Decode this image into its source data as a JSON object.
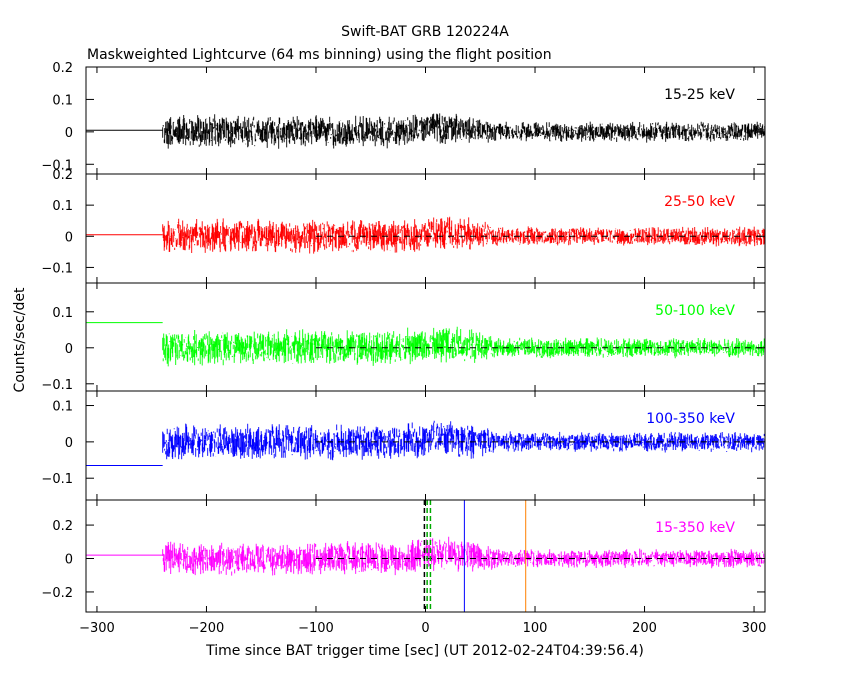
{
  "chart_data": {
    "type": "line",
    "title": "Swift-BAT GRB 120224A",
    "subtitle": "Maskweighted Lightcurve (64 ms binning) using the flight position",
    "xlabel": "Time since BAT trigger time [sec] (UT 2012-02-24T04:39:56.4)",
    "ylabel": "Counts/sec/det",
    "xlim": [
      -310,
      310
    ],
    "x_ticks": [
      -300,
      -200,
      -100,
      0,
      100,
      200,
      300
    ],
    "data_start": -240,
    "grid": false,
    "panels": [
      {
        "band": "15-25 keV",
        "color": "#000000",
        "ylim": [
          -0.13,
          0.2
        ],
        "y_ticks": [
          -0.1,
          0,
          0.1,
          0.2
        ],
        "y_tick_labels": [
          "−0.1",
          "0",
          "0.1",
          "0.2"
        ],
        "pre_level": 0.005,
        "noise_early": 0.045,
        "noise_late": 0.028,
        "bump": 0.015,
        "zero_dashed": false
      },
      {
        "band": "25-50 keV",
        "color": "#ff0000",
        "ylim": [
          -0.15,
          0.2
        ],
        "y_ticks": [
          -0.1,
          0,
          0.1,
          0.2
        ],
        "y_tick_labels": [
          "−0.1",
          "0",
          "0.1",
          "0.2"
        ],
        "pre_level": 0.005,
        "noise_early": 0.05,
        "noise_late": 0.028,
        "bump": 0.012,
        "zero_dashed": true
      },
      {
        "band": "50-100 keV",
        "color": "#00ff00",
        "ylim": [
          -0.12,
          0.18
        ],
        "y_ticks": [
          -0.1,
          0,
          0.1
        ],
        "y_tick_labels": [
          "−0.1",
          "0",
          "0.1"
        ],
        "pre_level": 0.07,
        "noise_early": 0.045,
        "noise_late": 0.025,
        "bump": 0.008,
        "zero_dashed": true
      },
      {
        "band": "100-350 keV",
        "color": "#0000ff",
        "ylim": [
          -0.16,
          0.14
        ],
        "y_ticks": [
          -0.1,
          0,
          0.1
        ],
        "y_tick_labels": [
          "−0.1",
          "0",
          "0.1"
        ],
        "pre_level": -0.065,
        "noise_early": 0.045,
        "noise_late": 0.025,
        "bump": 0.008,
        "zero_dashed": true
      },
      {
        "band": "15-350 keV",
        "color": "#ff00ff",
        "ylim": [
          -0.32,
          0.35
        ],
        "y_ticks": [
          -0.2,
          0,
          0.2
        ],
        "y_tick_labels": [
          "−0.2",
          "0",
          "0.2"
        ],
        "pre_level": 0.02,
        "noise_early": 0.09,
        "noise_late": 0.05,
        "bump": 0.03,
        "zero_dashed": true
      }
    ],
    "markers": [
      {
        "x": -1.0,
        "color": "#000000",
        "dash": true
      },
      {
        "x": 1.5,
        "color": "#00aa00",
        "dash": true
      },
      {
        "x": 4.5,
        "color": "#00aa00",
        "dash": true
      },
      {
        "x": 35.5,
        "color": "#0000ff",
        "dash": false
      },
      {
        "x": 91.5,
        "color": "#ff8000",
        "dash": false
      }
    ]
  }
}
